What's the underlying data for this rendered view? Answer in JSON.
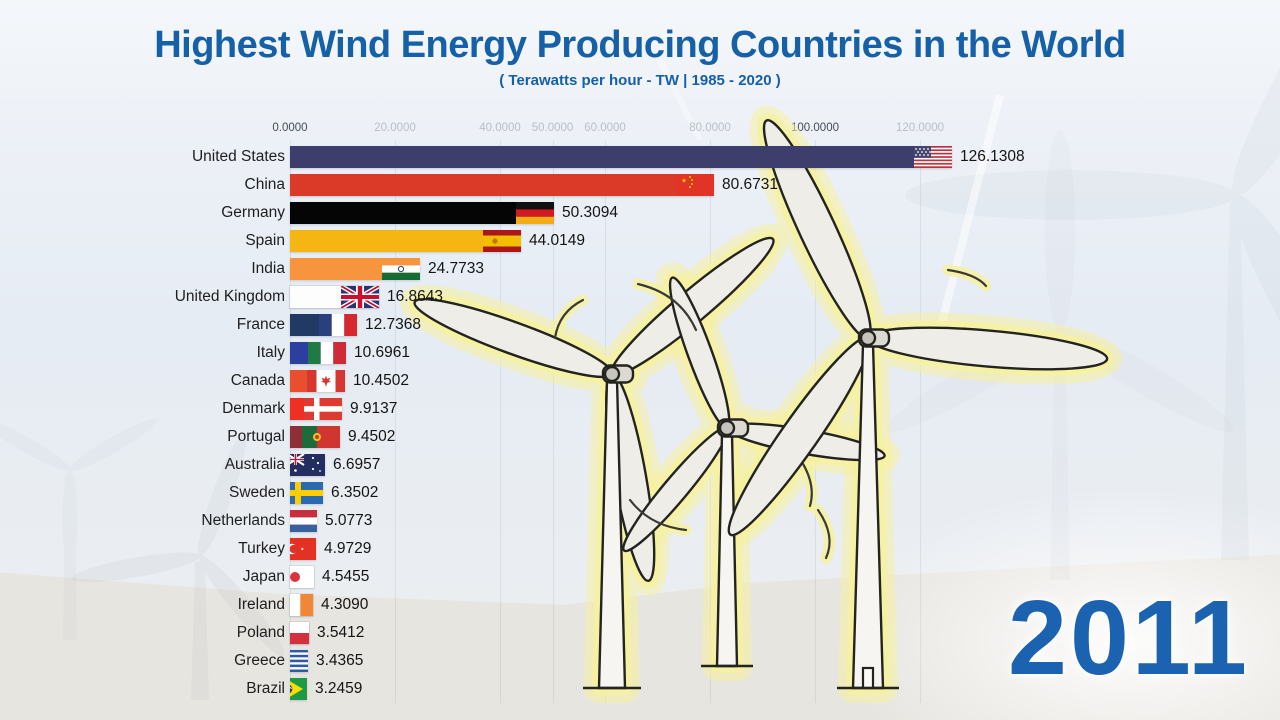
{
  "title": "Highest Wind Energy Producing Countries in the World",
  "subtitle": "( Terawatts per hour - TW | 1985 - 2020 )",
  "year": "2011",
  "colors": {
    "title_blue": "#1560a6",
    "year_blue": "#1b63b0",
    "glow_yellow": "#f6f1a0"
  },
  "axis": {
    "ticks": [
      {
        "label": "0.0000",
        "value": 0,
        "tone": "strong"
      },
      {
        "label": "20.0000",
        "value": 20,
        "tone": "dim"
      },
      {
        "label": "40.0000",
        "value": 40,
        "tone": "dim"
      },
      {
        "label": "50.0000",
        "value": 50,
        "tone": "dim"
      },
      {
        "label": "60.0000",
        "value": 60,
        "tone": "dim"
      },
      {
        "label": "80.0000",
        "value": 80,
        "tone": "dim"
      },
      {
        "label": "100.0000",
        "value": 100,
        "tone": "strong"
      },
      {
        "label": "120.0000",
        "value": 120,
        "tone": "dim"
      }
    ]
  },
  "chart_data": {
    "type": "bar",
    "orientation": "horizontal",
    "title": "Highest Wind Energy Producing Countries in the World",
    "unit": "Terawatts per hour (TW)",
    "period": "1985 - 2020",
    "current_year": "2011",
    "xlim": [
      0,
      130
    ],
    "x_ticks": [
      0,
      20,
      40,
      50,
      60,
      80,
      100,
      120
    ],
    "grid": true,
    "categories": [
      "United States",
      "China",
      "Germany",
      "Spain",
      "India",
      "United Kingdom",
      "France",
      "Italy",
      "Canada",
      "Denmark",
      "Portugal",
      "Australia",
      "Sweden",
      "Netherlands",
      "Turkey",
      "Japan",
      "Ireland",
      "Poland",
      "Greece",
      "Brazil"
    ],
    "values": [
      126.1308,
      80.6731,
      50.3094,
      44.0149,
      24.7733,
      16.8643,
      12.7368,
      10.6961,
      10.4502,
      9.9137,
      9.4502,
      6.6957,
      6.3502,
      5.0773,
      4.9729,
      4.5455,
      4.309,
      3.5412,
      3.4365,
      3.2459
    ]
  },
  "countries": [
    {
      "name": "United States",
      "value_label": "126.1308",
      "flag": "us",
      "color": "#3e3e6c",
      "light": false
    },
    {
      "name": "China",
      "value_label": "80.6731",
      "flag": "cn",
      "color": "#dc3a28",
      "light": false
    },
    {
      "name": "Germany",
      "value_label": "50.3094",
      "flag": "de",
      "color": "#050505",
      "light": false
    },
    {
      "name": "Spain",
      "value_label": "44.0149",
      "flag": "es",
      "color": "#f5b513",
      "light": false
    },
    {
      "name": "India",
      "value_label": "24.7733",
      "flag": "in",
      "color": "#f7953e",
      "light": false
    },
    {
      "name": "United Kingdom",
      "value_label": "16.8643",
      "flag": "gb",
      "color": "#fdfdfd",
      "light": true
    },
    {
      "name": "France",
      "value_label": "12.7368",
      "flag": "fr",
      "color": "#203a64",
      "light": false
    },
    {
      "name": "Italy",
      "value_label": "10.6961",
      "flag": "it",
      "color": "#2b3f9e",
      "light": false
    },
    {
      "name": "Canada",
      "value_label": "10.4502",
      "flag": "ca",
      "color": "#e8502d",
      "light": false
    },
    {
      "name": "Denmark",
      "value_label": "9.9137",
      "flag": "dk",
      "color": "#ee2f24",
      "light": false
    },
    {
      "name": "Portugal",
      "value_label": "9.4502",
      "flag": "pt",
      "color": "#8e2f38",
      "light": false
    },
    {
      "name": "Australia",
      "value_label": "6.6957",
      "flag": "au",
      "color": "#21295e",
      "light": false
    },
    {
      "name": "Sweden",
      "value_label": "6.3502",
      "flag": "se",
      "color": "#2a6ab0",
      "light": false
    },
    {
      "name": "Netherlands",
      "value_label": "5.0773",
      "flag": "nl",
      "color": "#b33f38",
      "light": false
    },
    {
      "name": "Turkey",
      "value_label": "4.9729",
      "flag": "tr",
      "color": "#e30a17",
      "light": false
    },
    {
      "name": "Japan",
      "value_label": "4.5455",
      "flag": "jp",
      "color": "#ffffff",
      "light": true
    },
    {
      "name": "Ireland",
      "value_label": "4.3090",
      "flag": "ie",
      "color": "#fafafa",
      "light": true
    },
    {
      "name": "Poland",
      "value_label": "3.5412",
      "flag": "pl",
      "color": "#f6f6f6",
      "light": true
    },
    {
      "name": "Greece",
      "value_label": "3.4365",
      "flag": "gr",
      "color": "#2d5ba8",
      "light": false
    },
    {
      "name": "Brazil",
      "value_label": "3.2459",
      "flag": "br",
      "color": "#1e9a44",
      "light": false
    }
  ]
}
